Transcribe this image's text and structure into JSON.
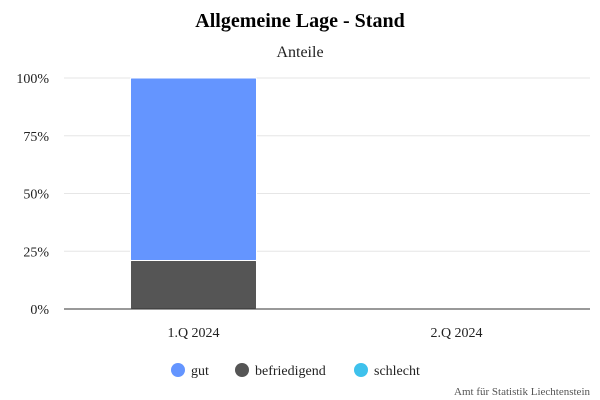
{
  "chart_data": {
    "type": "bar",
    "stacked": true,
    "title": "Allgemeine Lage - Stand",
    "subtitle": "Anteile",
    "categories": [
      "1.Q 2024",
      "2.Q 2024"
    ],
    "series": [
      {
        "name": "gut",
        "color": "#6495ff",
        "values": [
          79,
          null
        ]
      },
      {
        "name": "befriedigend",
        "color": "#555555",
        "values": [
          21,
          null
        ]
      },
      {
        "name": "schlecht",
        "color": "#3ec1ec",
        "values": [
          0,
          null
        ]
      }
    ],
    "ylim": [
      0,
      100
    ],
    "yticks": [
      "0%",
      "25%",
      "50%",
      "75%",
      "100%"
    ],
    "ytick_values": [
      0,
      25,
      50,
      75,
      100
    ],
    "grid": true,
    "legend_position": "bottom-center"
  },
  "credit": "Amt für Statistik Liechtenstein"
}
